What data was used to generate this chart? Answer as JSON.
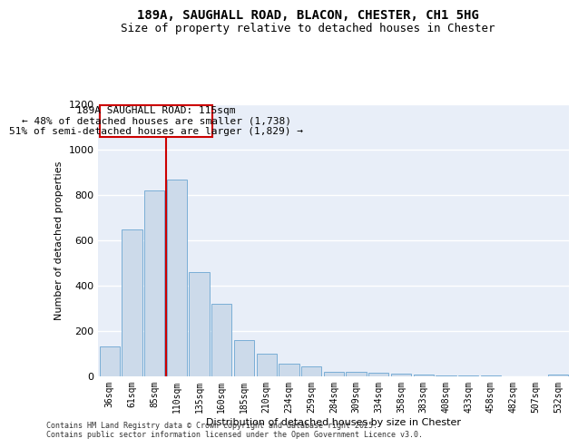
{
  "title_line1": "189A, SAUGHALL ROAD, BLACON, CHESTER, CH1 5HG",
  "title_line2": "Size of property relative to detached houses in Chester",
  "xlabel": "Distribution of detached houses by size in Chester",
  "ylabel": "Number of detached properties",
  "categories": [
    "36sqm",
    "61sqm",
    "85sqm",
    "110sqm",
    "135sqm",
    "160sqm",
    "185sqm",
    "210sqm",
    "234sqm",
    "259sqm",
    "284sqm",
    "309sqm",
    "334sqm",
    "358sqm",
    "383sqm",
    "408sqm",
    "433sqm",
    "458sqm",
    "482sqm",
    "507sqm",
    "532sqm"
  ],
  "values": [
    130,
    645,
    820,
    865,
    460,
    320,
    160,
    100,
    55,
    42,
    20,
    18,
    14,
    10,
    5,
    2,
    1,
    1,
    0,
    0,
    5
  ],
  "bar_color": "#ccdaea",
  "bar_edge_color": "#7aaed6",
  "vline_x_index": 2.5,
  "vline_color": "#cc0000",
  "annotation_line1": "189A SAUGHALL ROAD: 115sqm",
  "annotation_line2": "← 48% of detached houses are smaller (1,738)",
  "annotation_line3": "51% of semi-detached houses are larger (1,829) →",
  "annotation_box_color": "#cc0000",
  "annotation_box_facecolor": "#ffffff",
  "ylim": [
    0,
    1200
  ],
  "yticks": [
    0,
    200,
    400,
    600,
    800,
    1000,
    1200
  ],
  "background_color": "#e8eef8",
  "footer_text": "Contains HM Land Registry data © Crown copyright and database right 2025.\nContains public sector information licensed under the Open Government Licence v3.0.",
  "grid_color": "#ffffff",
  "title_fontsize": 10,
  "subtitle_fontsize": 9,
  "axis_label_fontsize": 8,
  "tick_fontsize": 7,
  "annotation_fontsize": 8,
  "footer_fontsize": 6
}
